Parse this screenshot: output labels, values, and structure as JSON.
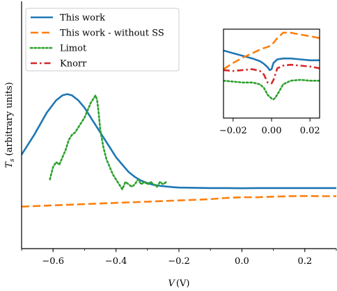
{
  "chart_data": {
    "type": "line",
    "xlabel": "V (V)",
    "xlabel_var": "V",
    "xlabel_unit": "(V)",
    "ylabel": "T_s (arbitrary units)",
    "ylabel_var": "T",
    "ylabel_sub": "s",
    "ylabel_rest": " (arbitrary units)",
    "xlim": [
      -0.7,
      0.3
    ],
    "ylim": [
      0.0,
      1.0
    ],
    "xticks": [
      -0.6,
      -0.4,
      -0.2,
      0.0,
      0.2
    ],
    "xtick_labels": [
      "−0.6",
      "−0.4",
      "−0.2",
      "0.0",
      "0.2"
    ],
    "y_tick_labels_visible": false,
    "grid": false,
    "legend_position": "upper-left",
    "series": [
      {
        "name": "This work",
        "color": "#1f77b4",
        "dash": "solid",
        "x": [
          -0.7,
          -0.66,
          -0.62,
          -0.59,
          -0.57,
          -0.555,
          -0.54,
          -0.52,
          -0.5,
          -0.48,
          -0.46,
          -0.44,
          -0.42,
          -0.4,
          -0.38,
          -0.36,
          -0.34,
          -0.32,
          -0.3,
          -0.28,
          -0.26,
          -0.24,
          -0.22,
          -0.2,
          -0.15,
          -0.1,
          -0.05,
          0.0,
          0.05,
          0.1,
          0.15,
          0.2,
          0.25,
          0.3
        ],
        "y": [
          0.38,
          0.46,
          0.55,
          0.6,
          0.62,
          0.625,
          0.62,
          0.6,
          0.57,
          0.53,
          0.49,
          0.45,
          0.41,
          0.37,
          0.34,
          0.31,
          0.29,
          0.275,
          0.265,
          0.258,
          0.254,
          0.251,
          0.249,
          0.247,
          0.246,
          0.245,
          0.245,
          0.244,
          0.245,
          0.245,
          0.245,
          0.245,
          0.245,
          0.245
        ]
      },
      {
        "name": "This work - without SS",
        "color": "#ff7f0e",
        "dash": "dashed",
        "x": [
          -0.7,
          -0.6,
          -0.5,
          -0.4,
          -0.3,
          -0.2,
          -0.1,
          -0.05,
          0.0,
          0.05,
          0.1,
          0.15,
          0.2,
          0.25,
          0.3
        ],
        "y": [
          0.17,
          0.175,
          0.18,
          0.185,
          0.19,
          0.195,
          0.2,
          0.205,
          0.208,
          0.208,
          0.21,
          0.212,
          0.213,
          0.212,
          0.212
        ]
      },
      {
        "name": "Limot",
        "color": "#2ca02c",
        "dash": "dotted",
        "x": [
          -0.61,
          -0.6,
          -0.59,
          -0.58,
          -0.57,
          -0.56,
          -0.55,
          -0.54,
          -0.53,
          -0.52,
          -0.51,
          -0.5,
          -0.49,
          -0.48,
          -0.47,
          -0.465,
          -0.46,
          -0.455,
          -0.45,
          -0.44,
          -0.43,
          -0.42,
          -0.41,
          -0.4,
          -0.39,
          -0.38,
          -0.37,
          -0.36,
          -0.35,
          -0.34,
          -0.33,
          -0.32,
          -0.31,
          -0.3,
          -0.29,
          -0.28,
          -0.27,
          -0.26,
          -0.25,
          -0.24
        ],
        "y": [
          0.28,
          0.33,
          0.35,
          0.34,
          0.37,
          0.4,
          0.44,
          0.46,
          0.47,
          0.49,
          0.51,
          0.53,
          0.56,
          0.59,
          0.61,
          0.62,
          0.6,
          0.55,
          0.48,
          0.41,
          0.36,
          0.33,
          0.3,
          0.28,
          0.26,
          0.24,
          0.27,
          0.26,
          0.25,
          0.26,
          0.28,
          0.26,
          0.27,
          0.26,
          0.27,
          0.26,
          0.25,
          0.27,
          0.26,
          0.27
        ]
      },
      {
        "name": "Knorr",
        "color": "#d62728",
        "dash": "dashdot",
        "x": [],
        "y": []
      }
    ],
    "inset": {
      "xlim": [
        -0.025,
        0.025
      ],
      "ylim": [
        0.0,
        1.0
      ],
      "xticks": [
        -0.02,
        0.0,
        0.02
      ],
      "xtick_labels": [
        "−0.02",
        "0.00",
        "0.02"
      ],
      "series": [
        {
          "name": "This work",
          "color": "#1f77b4",
          "dash": "solid",
          "x": [
            -0.025,
            -0.02,
            -0.015,
            -0.01,
            -0.006,
            -0.004,
            -0.002,
            -0.001,
            0.0,
            0.001,
            0.003,
            0.006,
            0.01,
            0.015,
            0.02,
            0.025
          ],
          "y": [
            0.76,
            0.73,
            0.7,
            0.67,
            0.64,
            0.61,
            0.57,
            0.54,
            0.55,
            0.62,
            0.66,
            0.67,
            0.67,
            0.66,
            0.65,
            0.65
          ]
        },
        {
          "name": "This work - without SS",
          "color": "#ff7f0e",
          "dash": "dashed",
          "x": [
            -0.025,
            -0.02,
            -0.015,
            -0.01,
            -0.005,
            -0.002,
            0.0,
            0.003,
            0.006,
            0.01,
            0.015,
            0.02,
            0.025
          ],
          "y": [
            0.55,
            0.62,
            0.68,
            0.73,
            0.78,
            0.8,
            0.82,
            0.9,
            0.96,
            0.96,
            0.94,
            0.92,
            0.9
          ]
        },
        {
          "name": "Knorr",
          "color": "#d62728",
          "dash": "dashdot",
          "x": [
            -0.025,
            -0.02,
            -0.015,
            -0.01,
            -0.006,
            -0.004,
            -0.002,
            0.0,
            0.001,
            0.003,
            0.006,
            0.01,
            0.015,
            0.02,
            0.025
          ],
          "y": [
            0.54,
            0.53,
            0.54,
            0.55,
            0.53,
            0.49,
            0.4,
            0.39,
            0.43,
            0.56,
            0.59,
            0.6,
            0.59,
            0.58,
            0.56
          ]
        },
        {
          "name": "Limot",
          "color": "#2ca02c",
          "dash": "dotted",
          "x": [
            -0.025,
            -0.02,
            -0.015,
            -0.01,
            -0.006,
            -0.004,
            -0.002,
            0.0,
            0.001,
            0.002,
            0.004,
            0.006,
            0.01,
            0.015,
            0.02,
            0.025
          ],
          "y": [
            0.42,
            0.41,
            0.4,
            0.4,
            0.38,
            0.34,
            0.26,
            0.22,
            0.21,
            0.23,
            0.3,
            0.38,
            0.42,
            0.43,
            0.42,
            0.42
          ]
        }
      ]
    }
  }
}
